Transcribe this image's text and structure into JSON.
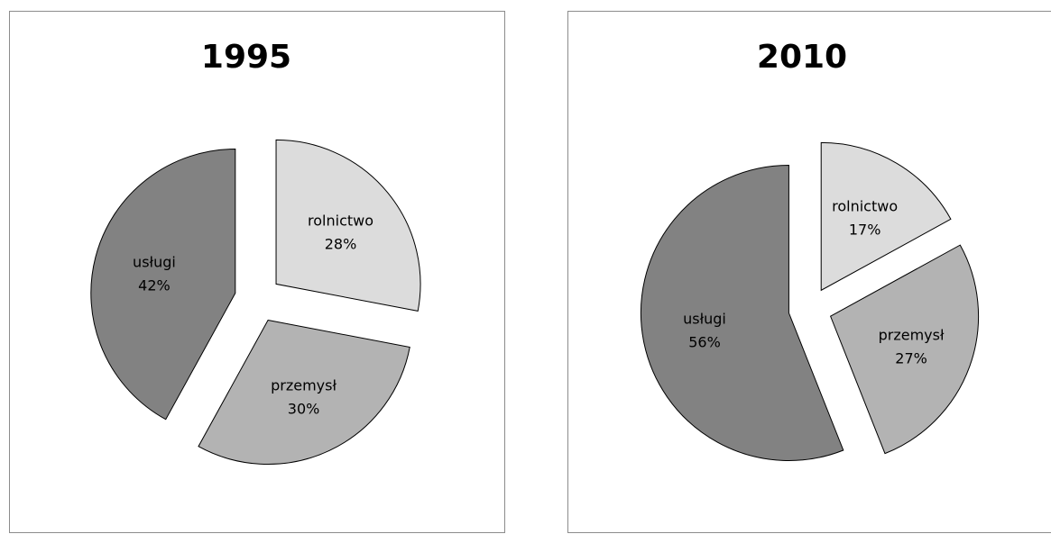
{
  "chart_data": [
    {
      "type": "pie",
      "title": "1995",
      "start_angle_deg": 0,
      "direction": "clockwise",
      "exploded": true,
      "slices": [
        {
          "label": "rolnictwo",
          "value": 28,
          "value_label": "28%",
          "color": "#dcdcdc"
        },
        {
          "label": "przemysł",
          "value": 30,
          "value_label": "30%",
          "color": "#b3b3b3"
        },
        {
          "label": "usługi",
          "value": 42,
          "value_label": "42%",
          "color": "#828282"
        }
      ]
    },
    {
      "type": "pie",
      "title": "2010",
      "start_angle_deg": 0,
      "direction": "clockwise",
      "exploded": true,
      "slices": [
        {
          "label": "rolnictwo",
          "value": 17,
          "value_label": "17%",
          "color": "#dcdcdc"
        },
        {
          "label": "przemysł",
          "value": 27,
          "value_label": "27%",
          "color": "#b3b3b3"
        },
        {
          "label": "usługi",
          "value": 56,
          "value_label": "56%",
          "color": "#828282"
        }
      ]
    }
  ]
}
